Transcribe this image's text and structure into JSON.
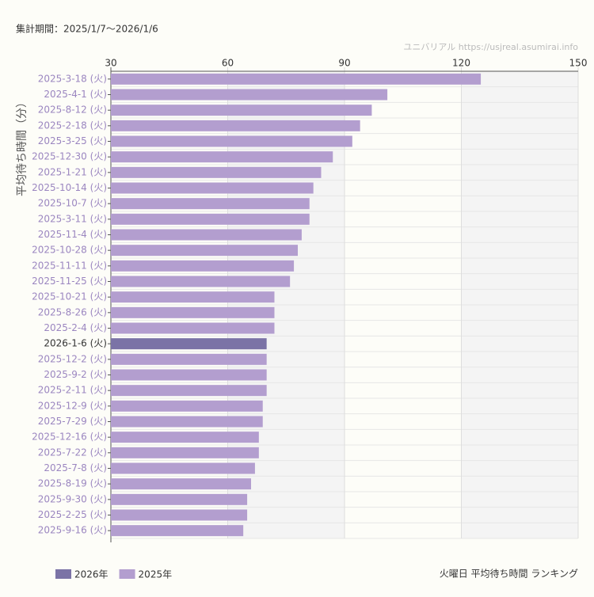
{
  "chart_data": {
    "type": "bar",
    "orientation": "horizontal",
    "subtitle": "集計期間：2025/1/7〜2026/1/6",
    "source": "ユニバリアル  https://usjreal.asumirai.info",
    "title": "火曜日 平均待ち時間 ランキング",
    "y_label": "平均待ち時間（分）",
    "categories": [
      "2025-3-18 (火)",
      "2025-4-1 (火)",
      "2025-8-12 (火)",
      "2025-2-18 (火)",
      "2025-3-25 (火)",
      "2025-12-30 (火)",
      "2025-1-21 (火)",
      "2025-10-14 (火)",
      "2025-10-7 (火)",
      "2025-3-11 (火)",
      "2025-11-4 (火)",
      "2025-10-28 (火)",
      "2025-11-11 (火)",
      "2025-11-25 (火)",
      "2025-10-21 (火)",
      "2025-8-26 (火)",
      "2025-2-4 (火)",
      "2026-1-6 (火)",
      "2025-12-2 (火)",
      "2025-9-2 (火)",
      "2025-2-11 (火)",
      "2025-12-9 (火)",
      "2025-7-29 (火)",
      "2025-12-16 (火)",
      "2025-7-22 (火)",
      "2025-7-8 (火)",
      "2025-8-19 (火)",
      "2025-9-30 (火)",
      "2025-2-25 (火)",
      "2025-9-16 (火)"
    ],
    "series": [
      {
        "name": "2026年",
        "color": "#7b73a6",
        "values": [
          null,
          null,
          null,
          null,
          null,
          null,
          null,
          null,
          null,
          null,
          null,
          null,
          null,
          null,
          null,
          null,
          null,
          70,
          null,
          null,
          null,
          null,
          null,
          null,
          null,
          null,
          null,
          null,
          null,
          null
        ]
      },
      {
        "name": "2025年",
        "color": "#b39ecf",
        "values": [
          125,
          101,
          97,
          94,
          92,
          87,
          84,
          82,
          81,
          81,
          79,
          78,
          77,
          76,
          72,
          72,
          72,
          null,
          70,
          70,
          70,
          69,
          69,
          68,
          68,
          67,
          66,
          65,
          65,
          64
        ]
      }
    ],
    "xlim": [
      30,
      150
    ],
    "xticks": [
      30,
      60,
      90,
      120,
      150
    ],
    "grid": true,
    "legend": "bottom-left"
  }
}
